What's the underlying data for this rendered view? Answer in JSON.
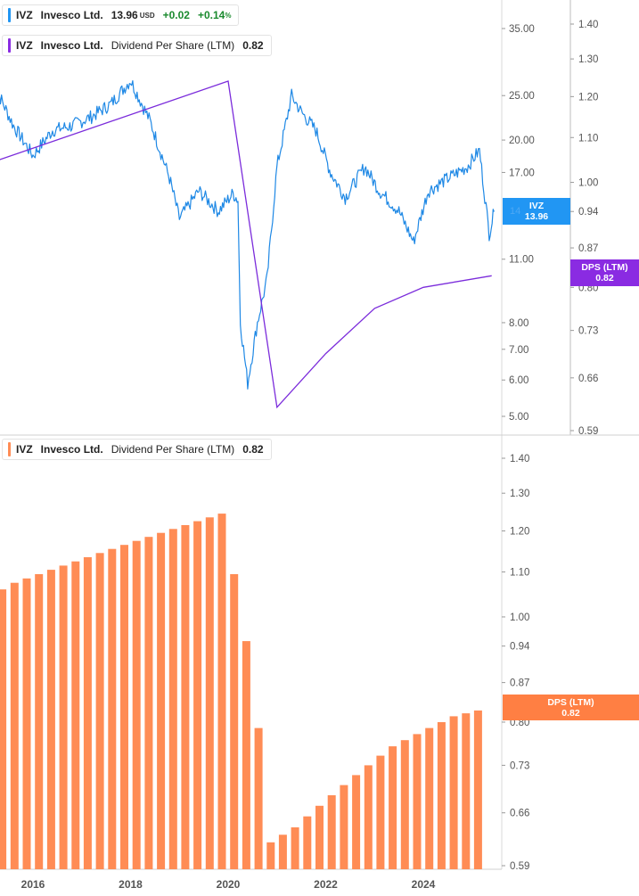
{
  "legend_top": {
    "ticker": "IVZ",
    "name": "Invesco Ltd.",
    "price": "13.96",
    "currency": "USD",
    "change": "+0.02",
    "change_pct": "+0.14",
    "pct_sign": "%"
  },
  "legend_dps_top": {
    "ticker": "IVZ",
    "name": "Invesco Ltd.",
    "metric": "Dividend Per Share (LTM)",
    "value": "0.82"
  },
  "legend_dps_bottom": {
    "ticker": "IVZ",
    "name": "Invesco Ltd.",
    "metric": "Dividend Per Share (LTM)",
    "value": "0.82"
  },
  "tags": {
    "price": {
      "label": "IVZ",
      "value": "13.96",
      "ghost": "14"
    },
    "dps_top": {
      "label": "DPS (LTM)",
      "value": "0.82"
    },
    "dps_bottom": {
      "label": "DPS (LTM)",
      "value": "0.82"
    }
  },
  "colors": {
    "price": "#1e88e5",
    "dps_line": "#7b2cdb",
    "bars": "#ff8c55",
    "tag_blue": "#2196f3",
    "tag_purple": "#8a2be2",
    "tag_orange": "#ff7f43"
  },
  "chart_data": [
    {
      "type": "line",
      "title": "",
      "series": [
        {
          "name": "IVZ",
          "scale": "log",
          "x": [
            2015.2,
            2015.6,
            2016.0,
            2016.4,
            2016.8,
            2017.2,
            2017.6,
            2018.0,
            2018.4,
            2018.8,
            2019.0,
            2019.4,
            2019.8,
            2020.1,
            2020.2,
            2020.25,
            2020.4,
            2020.6,
            2020.8,
            2021.0,
            2021.3,
            2021.5,
            2021.8,
            2022.1,
            2022.4,
            2022.8,
            2023.1,
            2023.5,
            2023.8,
            2024.1,
            2024.5,
            2024.9,
            2025.15,
            2025.35,
            2025.45
          ],
          "values": [
            26.5,
            21.5,
            18.5,
            21.0,
            21.5,
            22.5,
            24.0,
            27.0,
            22.0,
            16.5,
            13.5,
            15.5,
            14.0,
            15.3,
            14.8,
            8.0,
            5.9,
            8.0,
            10.0,
            17.5,
            25.0,
            23.0,
            21.0,
            17.0,
            15.0,
            17.5,
            15.5,
            14.0,
            12.0,
            15.5,
            16.5,
            17.5,
            19.0,
            12.5,
            13.96
          ]
        },
        {
          "name": "DPS (LTM)",
          "scale": "log",
          "x": [
            2015.2,
            2020.0,
            2021.0,
            2022.0,
            2023.0,
            2024.0,
            2025.4
          ],
          "values": [
            1.045,
            1.24,
            0.62,
            0.695,
            0.765,
            0.8,
            0.82
          ]
        }
      ],
      "y_ticks_price": [
        35.0,
        25.0,
        20.0,
        17.0,
        14.0,
        11.0,
        8.0,
        7.0,
        6.0,
        5.0
      ],
      "y_tick_labels_price": [
        "35.00",
        "25.00",
        "20.00",
        "17.00",
        "14.00",
        "11.00",
        "8.00",
        "7.00",
        "6.00",
        "5.00"
      ],
      "y_ticks_dps": [
        1.4,
        1.3,
        1.2,
        1.1,
        1.0,
        0.94,
        0.87,
        0.8,
        0.73,
        0.66,
        0.59
      ],
      "y_tick_labels_dps": [
        "1.40",
        "1.30",
        "1.20",
        "1.10",
        "1.00",
        "0.94",
        "0.87",
        "0.80",
        "0.73",
        "0.66",
        "0.59"
      ]
    },
    {
      "type": "bar",
      "title": "",
      "series": [
        {
          "name": "Dividend Per Share (LTM)",
          "x": [
            2015.25,
            2015.5,
            2015.75,
            2016.0,
            2016.25,
            2016.5,
            2016.75,
            2017.0,
            2017.25,
            2017.5,
            2017.75,
            2018.0,
            2018.25,
            2018.5,
            2018.75,
            2019.0,
            2019.25,
            2019.5,
            2019.75,
            2020.0,
            2020.25,
            2020.5,
            2020.75,
            2021.0,
            2021.25,
            2021.5,
            2021.75,
            2022.0,
            2022.25,
            2022.5,
            2022.75,
            2023.0,
            2023.25,
            2023.5,
            2023.75,
            2024.0,
            2024.25,
            2024.5,
            2024.75,
            2025.0,
            2025.25
          ],
          "values": [
            1.045,
            1.06,
            1.075,
            1.085,
            1.095,
            1.105,
            1.115,
            1.125,
            1.135,
            1.145,
            1.155,
            1.165,
            1.175,
            1.185,
            1.195,
            1.205,
            1.215,
            1.225,
            1.235,
            1.245,
            1.095,
            0.95,
            0.79,
            0.62,
            0.63,
            0.64,
            0.655,
            0.67,
            0.685,
            0.7,
            0.715,
            0.73,
            0.745,
            0.76,
            0.77,
            0.78,
            0.79,
            0.8,
            0.81,
            0.815,
            0.82
          ]
        }
      ],
      "y_ticks": [
        1.4,
        1.3,
        1.2,
        1.1,
        1.0,
        0.94,
        0.87,
        0.8,
        0.73,
        0.66,
        0.59
      ],
      "y_tick_labels": [
        "1.40",
        "1.30",
        "1.20",
        "1.10",
        "1.00",
        "0.94",
        "0.87",
        "0.80",
        "0.73",
        "0.66",
        "0.59"
      ],
      "x_tick_years": [
        2016,
        2018,
        2020,
        2022,
        2024
      ],
      "x_tick_labels": [
        "2016",
        "2018",
        "2020",
        "2022",
        "2024"
      ]
    }
  ]
}
